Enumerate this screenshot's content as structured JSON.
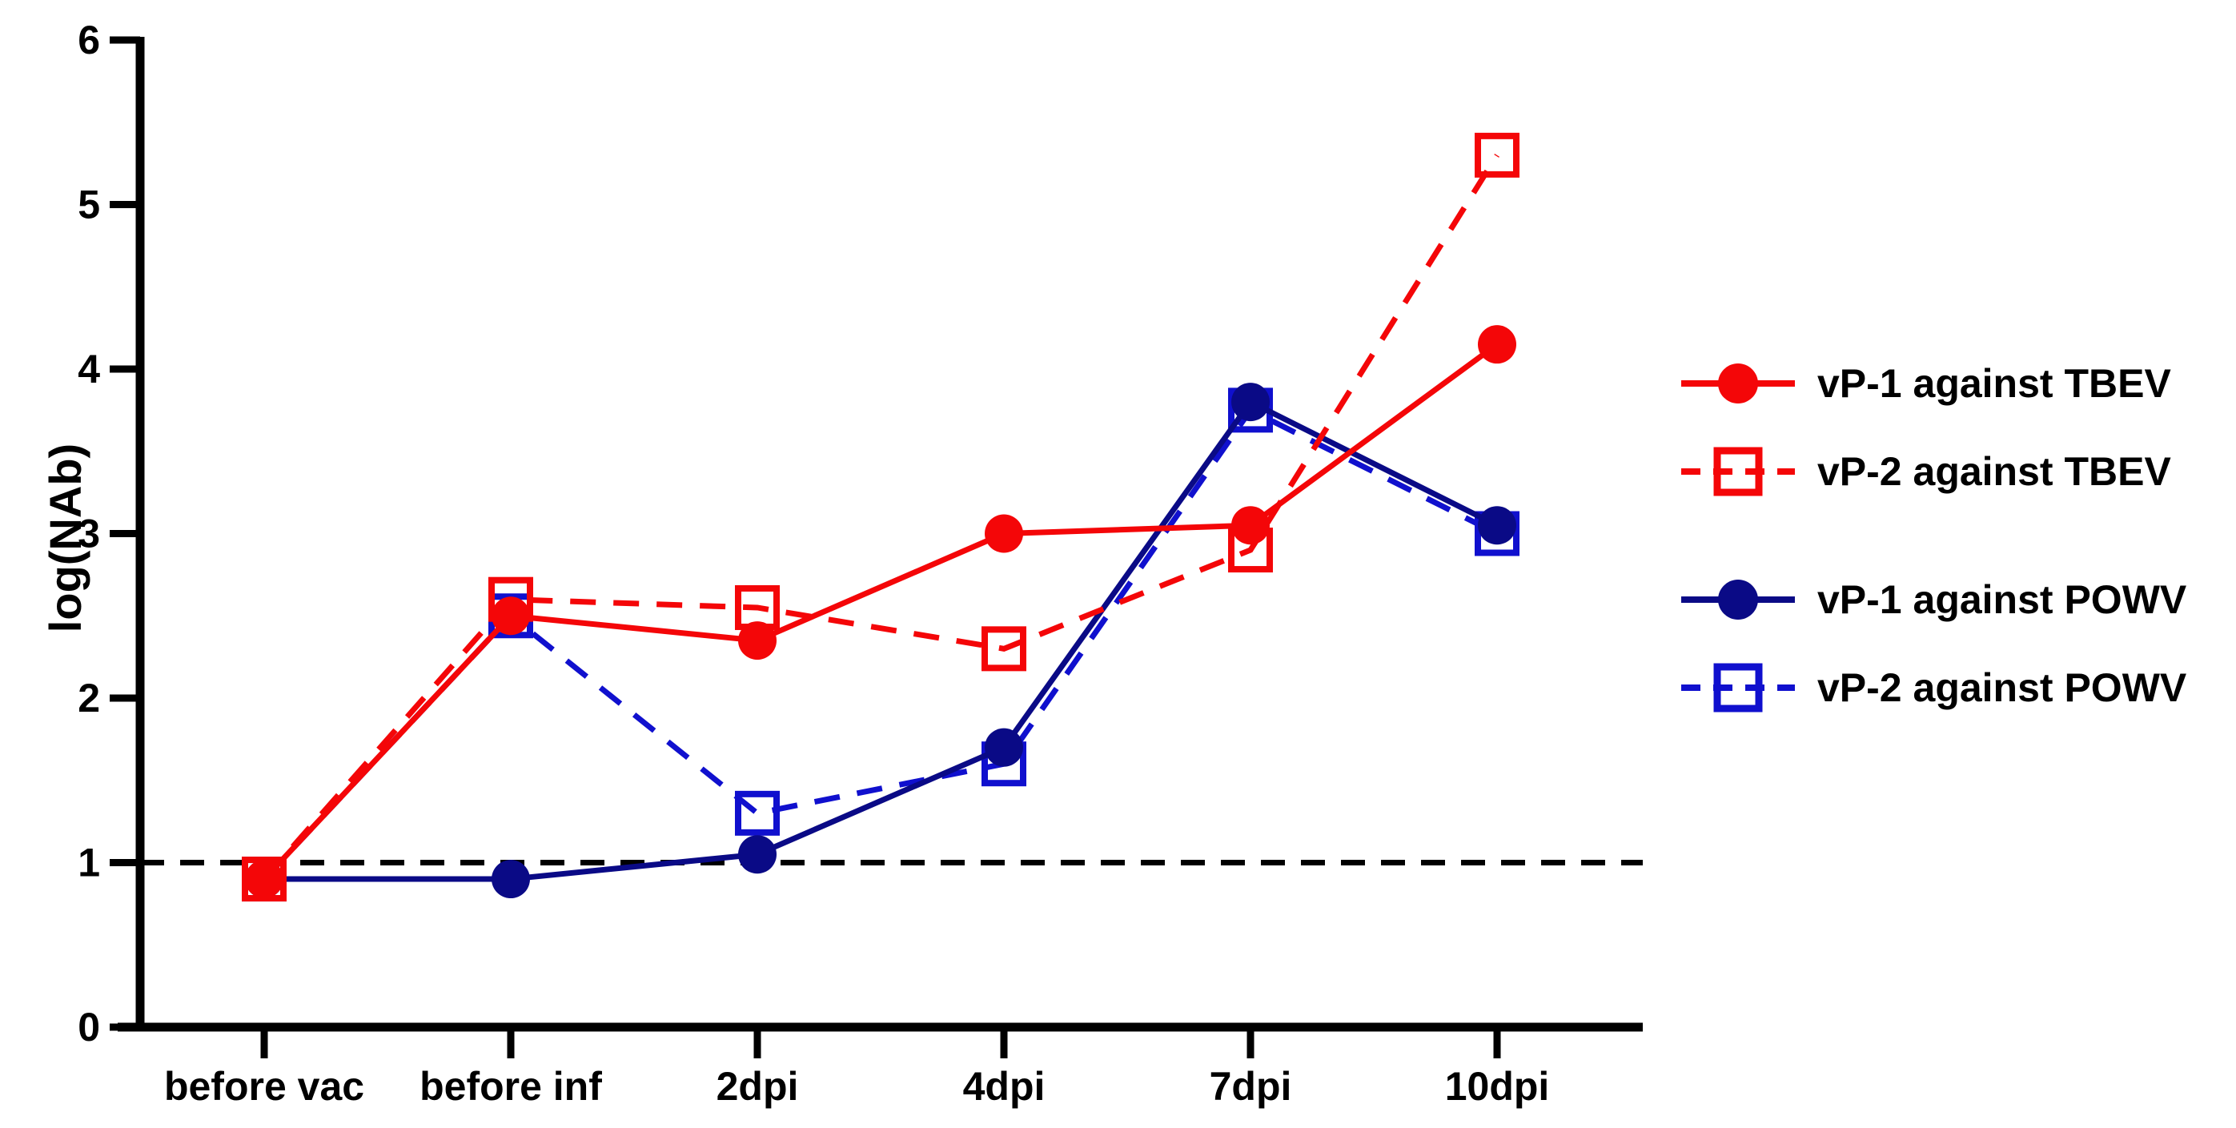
{
  "chart_data": {
    "type": "line",
    "title": "",
    "xlabel": "",
    "ylabel": "log(NAb)",
    "ylim": [
      0,
      6
    ],
    "yticks": [
      0,
      1,
      2,
      3,
      4,
      5,
      6
    ],
    "categories": [
      "before vac",
      "before inf",
      "2dpi",
      "4dpi",
      "7dpi",
      "10dpi"
    ],
    "grid": false,
    "legend_position": "right",
    "reference_line": {
      "y": 1,
      "style": "dashed",
      "color": "#000000"
    },
    "axis_color": "#000000",
    "series": [
      {
        "name": "vP-1 against TBEV",
        "color": "#F40608",
        "line": "solid",
        "marker": "filled-circle",
        "values": [
          0.9,
          2.5,
          2.35,
          3.0,
          3.05,
          4.15
        ]
      },
      {
        "name": "vP-2 against TBEV",
        "color": "#F40608",
        "line": "dashed",
        "marker": "open-square",
        "values": [
          0.9,
          2.6,
          2.55,
          2.3,
          2.9,
          5.3
        ]
      },
      {
        "name": "vP-1 against POWV",
        "color": "#0A0A86",
        "line": "solid",
        "marker": "filled-circle",
        "values": [
          0.9,
          0.9,
          1.05,
          1.7,
          3.8,
          3.05
        ]
      },
      {
        "name": "vP-2 against POWV",
        "color": "#1010CE",
        "line": "dashed",
        "marker": "open-square",
        "values": [
          0.9,
          2.5,
          1.3,
          1.6,
          3.75,
          3.0
        ]
      }
    ],
    "draw_order": [
      3,
      2,
      1,
      0
    ]
  }
}
